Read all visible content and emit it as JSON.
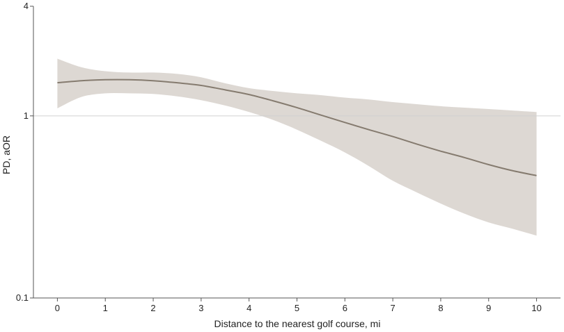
{
  "chart_data": {
    "type": "line",
    "xlabel": "Distance to the nearest golf course, mi",
    "ylabel": "PD, aOR",
    "xlim": [
      -0.5,
      10.5
    ],
    "ylim": [
      0.1,
      4
    ],
    "y_scale": "log",
    "x_ticks": [
      0,
      1,
      2,
      3,
      4,
      5,
      6,
      7,
      8,
      9,
      10
    ],
    "y_ticks": [
      0.1,
      1,
      4
    ],
    "y_tick_labels": [
      "0.1",
      "1",
      "4"
    ],
    "reference_line_y": 1,
    "grid": false,
    "colors": {
      "line": "#857b6f",
      "band": "#ddd8d3",
      "axis": "#555555",
      "reference": "#d0d0d0"
    },
    "series": [
      {
        "x": [
          0,
          0.5,
          1,
          1.5,
          2,
          2.5,
          3,
          3.5,
          4,
          4.5,
          5,
          5.5,
          6,
          6.5,
          7,
          7.5,
          8,
          8.5,
          9,
          9.5,
          10
        ],
        "y": [
          1.52,
          1.56,
          1.58,
          1.58,
          1.56,
          1.52,
          1.47,
          1.39,
          1.31,
          1.21,
          1.11,
          1.01,
          0.92,
          0.84,
          0.77,
          0.7,
          0.64,
          0.59,
          0.54,
          0.5,
          0.47
        ],
        "lower": [
          1.1,
          1.27,
          1.33,
          1.33,
          1.32,
          1.28,
          1.22,
          1.14,
          1.05,
          0.95,
          0.84,
          0.73,
          0.63,
          0.53,
          0.44,
          0.38,
          0.33,
          0.29,
          0.26,
          0.24,
          0.22
        ],
        "upper": [
          2.06,
          1.85,
          1.76,
          1.73,
          1.73,
          1.7,
          1.63,
          1.51,
          1.42,
          1.37,
          1.33,
          1.3,
          1.26,
          1.23,
          1.19,
          1.16,
          1.13,
          1.11,
          1.09,
          1.07,
          1.05
        ]
      }
    ]
  }
}
